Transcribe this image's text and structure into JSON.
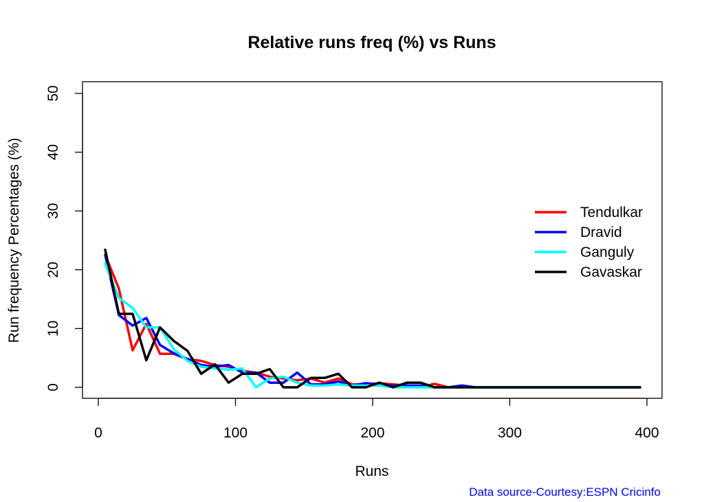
{
  "chart_data": {
    "type": "line",
    "title": "Relative runs freq (%) vs Runs",
    "xlabel": "Runs",
    "ylabel": "Run frequency Percentages (%)",
    "xlim": [
      0,
      400
    ],
    "ylim": [
      0,
      50
    ],
    "xticks": [
      "0",
      "100",
      "200",
      "300",
      "400"
    ],
    "yticks": [
      "0",
      "10",
      "20",
      "30",
      "40",
      "50"
    ],
    "grid": false,
    "legend_position": "right",
    "x": [
      5,
      15,
      25,
      35,
      45,
      55,
      65,
      75,
      85,
      95,
      105,
      115,
      125,
      135,
      145,
      155,
      165,
      175,
      185,
      195,
      205,
      215,
      225,
      235,
      245,
      255,
      265,
      275,
      285,
      295,
      305,
      315,
      325,
      335,
      345,
      355,
      365,
      375,
      385,
      395
    ],
    "series": [
      {
        "name": "Tendulkar",
        "color": "#ff0000",
        "values": [
          22.5,
          16.8,
          6.3,
          10.8,
          5.7,
          5.7,
          4.8,
          4.5,
          3.8,
          3.5,
          2.8,
          2.5,
          1.8,
          1.5,
          1.2,
          1.5,
          0.8,
          1.5,
          0.5,
          0.5,
          0.7,
          0.5,
          0.3,
          0,
          0.6,
          0,
          0,
          0,
          0,
          0,
          0,
          0,
          0,
          0,
          0,
          0,
          0,
          0,
          0,
          0
        ]
      },
      {
        "name": "Dravid",
        "color": "#0000ff",
        "values": [
          22.5,
          12.3,
          10.5,
          11.8,
          7.2,
          5.8,
          4.8,
          3.8,
          3.5,
          3.8,
          2.5,
          2.5,
          0.8,
          0.8,
          2.5,
          0.5,
          0.5,
          1.0,
          0.3,
          0.7,
          0.5,
          0.3,
          0.3,
          0.3,
          0,
          0,
          0.3,
          0,
          0,
          0,
          0,
          0,
          0,
          0,
          0,
          0,
          0,
          0,
          0,
          0
        ]
      },
      {
        "name": "Ganguly",
        "color": "#00ffff",
        "values": [
          21.0,
          15.2,
          13.5,
          10.2,
          10.2,
          6.5,
          4.5,
          3.5,
          3.2,
          3.0,
          3.2,
          0,
          1.5,
          1.8,
          0.8,
          0.3,
          0.3,
          0.5,
          0.3,
          0.3,
          0.3,
          0,
          0,
          0,
          0,
          0,
          0,
          0,
          0,
          0,
          0,
          0,
          0,
          0,
          0,
          0,
          0,
          0,
          0,
          0
        ]
      },
      {
        "name": "Gavaskar",
        "color": "#000000",
        "values": [
          23.4,
          12.5,
          12.5,
          4.6,
          10.2,
          7.9,
          6.2,
          2.3,
          3.9,
          0.8,
          2.3,
          2.3,
          3.1,
          0,
          0,
          1.6,
          1.6,
          2.3,
          0,
          0,
          0.8,
          0,
          0.8,
          0.8,
          0,
          0,
          0,
          0,
          0,
          0,
          0,
          0,
          0,
          0,
          0,
          0,
          0,
          0,
          0,
          0
        ]
      }
    ]
  },
  "source_note": "Data source-Courtesy:ESPN Cricinfo",
  "colors": {
    "source_note": "#0000ff"
  }
}
